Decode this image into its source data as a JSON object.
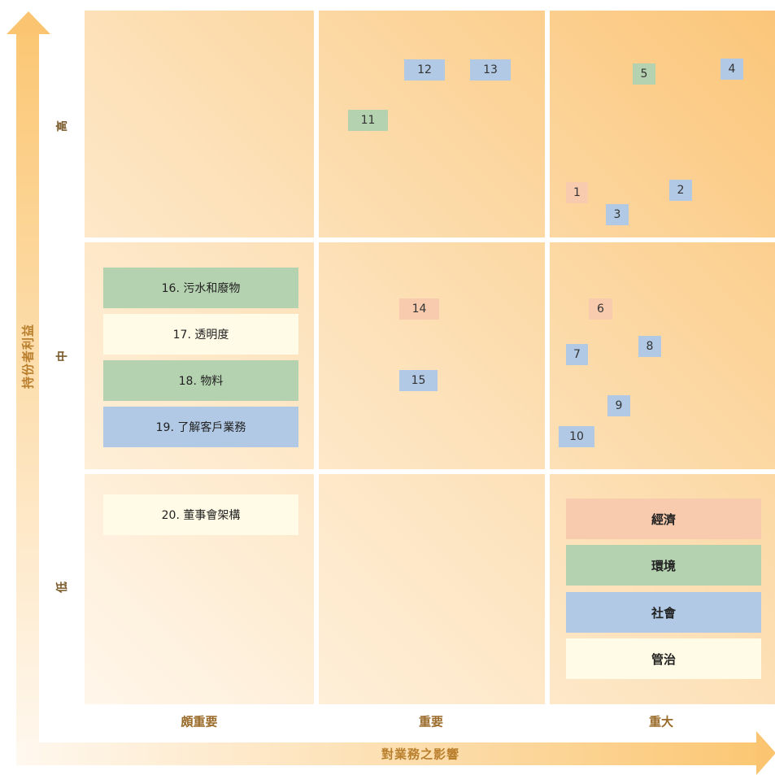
{
  "axes": {
    "y_title": "持份者利益",
    "x_title": "對業務之影響",
    "rows": [
      "高",
      "中",
      "低"
    ],
    "columns": [
      "頗重要",
      "重要",
      "重大"
    ]
  },
  "points": [
    {
      "label": "1",
      "category": "economic"
    },
    {
      "label": "2",
      "category": "social"
    },
    {
      "label": "3",
      "category": "social"
    },
    {
      "label": "4",
      "category": "social"
    },
    {
      "label": "5",
      "category": "environmental"
    },
    {
      "label": "6",
      "category": "economic"
    },
    {
      "label": "7",
      "category": "social"
    },
    {
      "label": "8",
      "category": "social"
    },
    {
      "label": "9",
      "category": "social"
    },
    {
      "label": "10",
      "category": "social"
    },
    {
      "label": "11",
      "category": "environmental"
    },
    {
      "label": "12",
      "category": "social"
    },
    {
      "label": "13",
      "category": "social"
    },
    {
      "label": "14",
      "category": "economic"
    },
    {
      "label": "15",
      "category": "social"
    }
  ],
  "named_issues": [
    {
      "label": "16. 污水和廢物",
      "category": "environmental"
    },
    {
      "label": "17. 透明度",
      "category": "governance"
    },
    {
      "label": "18. 物料",
      "category": "environmental"
    },
    {
      "label": "19. 了解客戶業務",
      "category": "social"
    },
    {
      "label": "20. 董事會架構",
      "category": "governance"
    }
  ],
  "legend": [
    {
      "label": "經濟",
      "category": "economic",
      "color": "#f8cbae"
    },
    {
      "label": "環境",
      "category": "environmental",
      "color": "#b5d2b0"
    },
    {
      "label": "社會",
      "category": "social",
      "color": "#b1c9e5"
    },
    {
      "label": "管治",
      "category": "governance",
      "color": "#fffbe6"
    }
  ]
}
